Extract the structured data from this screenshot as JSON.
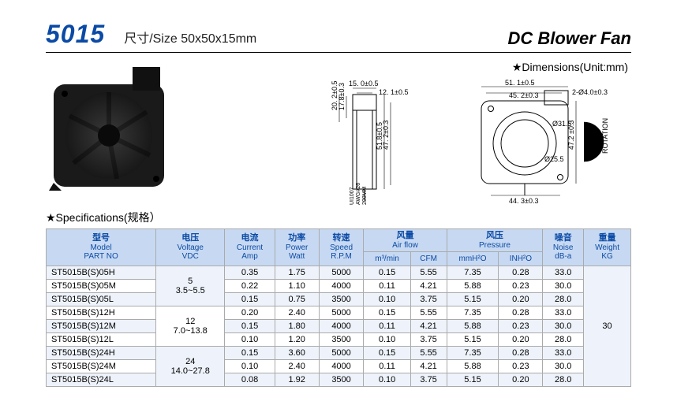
{
  "header": {
    "model": "5015",
    "size_label": "尺寸/Size 50x50x15mm",
    "title": "DC Blower Fan"
  },
  "dimensions": {
    "title": "★Dimensions(Unit:mm)",
    "side": {
      "top_w": "15. 0±0.5",
      "top_inner": "12. 1±0.5",
      "left_h": "20. 2±0.5",
      "left_inner": "17.8±0.3",
      "right_h": "51.8±0.5",
      "right_inner": "47. 2±0.3",
      "lead": "UI1007\nAWG#26\n200MM"
    },
    "front": {
      "top_w": "51. 1±0.5",
      "top_inner": "45. 2±0.3",
      "hole": "2-Ø4.0±0.3",
      "outer_d": "Ø31.5",
      "inner_d": "Ø25.5",
      "right_h": "47.2 ±0.3",
      "rot": "ROTATION",
      "bottom": "44. 3±0.3"
    }
  },
  "specs": {
    "title": "★Specifications(规格）",
    "columns": [
      {
        "cn": "型号",
        "en": "Model",
        "en2": "PART NO"
      },
      {
        "cn": "电压",
        "en": "Voltage",
        "en2": "VDC"
      },
      {
        "cn": "电流",
        "en": "Current",
        "en2": "Amp"
      },
      {
        "cn": "功率",
        "en": "Power",
        "en2": "Watt"
      },
      {
        "cn": "转速",
        "en": "Speed",
        "en2": "R.P.M"
      },
      {
        "cn": "风量",
        "en": "Air flow",
        "sub": [
          "m³/min",
          "CFM"
        ]
      },
      {
        "cn": "风压",
        "en": "Pressure",
        "sub": [
          "mmH²O",
          "INH²O"
        ]
      },
      {
        "cn": "噪音",
        "en": "Noise",
        "en2": "dB-a"
      },
      {
        "cn": "重量",
        "en": "Weight",
        "en2": "KG"
      }
    ],
    "voltage_groups": [
      {
        "nom": "5",
        "range": "3.5~5.5",
        "span": 3
      },
      {
        "nom": "12",
        "range": "7.0~13.8",
        "span": 3
      },
      {
        "nom": "24",
        "range": "14.0~27.8",
        "span": 3
      }
    ],
    "weight": "30",
    "rows": [
      {
        "pn": "ST5015B(S)05H",
        "amp": "0.35",
        "w": "1.75",
        "rpm": "5000",
        "m3": "0.15",
        "cfm": "5.55",
        "mmh": "7.35",
        "inh": "0.28",
        "db": "33.0"
      },
      {
        "pn": "ST5015B(S)05M",
        "amp": "0.22",
        "w": "1.10",
        "rpm": "4000",
        "m3": "0.11",
        "cfm": "4.21",
        "mmh": "5.88",
        "inh": "0.23",
        "db": "30.0"
      },
      {
        "pn": "ST5015B(S)05L",
        "amp": "0.15",
        "w": "0.75",
        "rpm": "3500",
        "m3": "0.10",
        "cfm": "3.75",
        "mmh": "5.15",
        "inh": "0.20",
        "db": "28.0"
      },
      {
        "pn": "ST5015B(S)12H",
        "amp": "0.20",
        "w": "2.40",
        "rpm": "5000",
        "m3": "0.15",
        "cfm": "5.55",
        "mmh": "7.35",
        "inh": "0.28",
        "db": "33.0"
      },
      {
        "pn": "ST5015B(S)12M",
        "amp": "0.15",
        "w": "1.80",
        "rpm": "4000",
        "m3": "0.11",
        "cfm": "4.21",
        "mmh": "5.88",
        "inh": "0.23",
        "db": "30.0"
      },
      {
        "pn": "ST5015B(S)12L",
        "amp": "0.10",
        "w": "1.20",
        "rpm": "3500",
        "m3": "0.10",
        "cfm": "3.75",
        "mmh": "5.15",
        "inh": "0.20",
        "db": "28.0"
      },
      {
        "pn": "ST5015B(S)24H",
        "amp": "0.15",
        "w": "3.60",
        "rpm": "5000",
        "m3": "0.15",
        "cfm": "5.55",
        "mmh": "7.35",
        "inh": "0.28",
        "db": "33.0"
      },
      {
        "pn": "ST5015B(S)24M",
        "amp": "0.10",
        "w": "2.40",
        "rpm": "4000",
        "m3": "0.11",
        "cfm": "4.21",
        "mmh": "5.88",
        "inh": "0.23",
        "db": "30.0"
      },
      {
        "pn": "ST5015B(S)24L",
        "amp": "0.08",
        "w": "1.92",
        "rpm": "3500",
        "m3": "0.10",
        "cfm": "3.75",
        "mmh": "5.15",
        "inh": "0.20",
        "db": "28.0"
      }
    ]
  },
  "style": {
    "brand_blue": "#0b4aa5",
    "header_bg": "#c7d9f2",
    "row_alt": "#eef3fb"
  }
}
